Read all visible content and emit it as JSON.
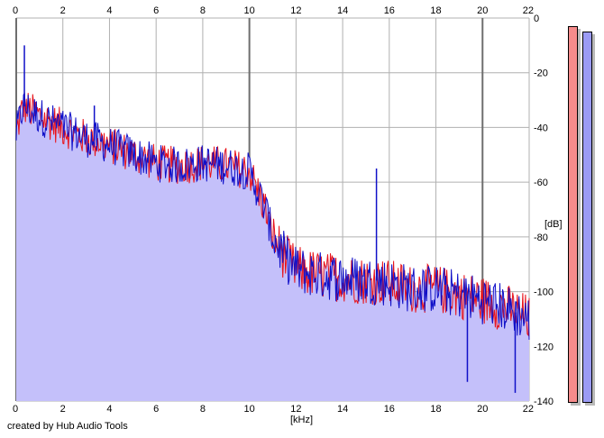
{
  "chart_data": {
    "type": "area",
    "title": "",
    "xlabel": "[kHz]",
    "ylabel": "[dB]",
    "xlim": [
      0,
      22
    ],
    "ylim": [
      -140,
      0
    ],
    "x_ticks": [
      0,
      2,
      4,
      6,
      8,
      10,
      12,
      14,
      16,
      18,
      20,
      22
    ],
    "y_ticks": [
      0,
      -20,
      -40,
      -60,
      -80,
      -100,
      -120,
      -140
    ],
    "grid": true,
    "colors": {
      "fill": "#c4c0fa",
      "left_channel": "#e8131b",
      "right_channel": "#1010c8",
      "grid": "#b0b0b0",
      "meter_left": "#f58b8b",
      "meter_right": "#9b9bf5"
    },
    "envelope": {
      "x": [
        0,
        0.3,
        0.8,
        1.5,
        2.0,
        3.0,
        3.5,
        4.5,
        6.0,
        7.0,
        8.0,
        9.0,
        10.0,
        10.3,
        10.7,
        11.0,
        11.5,
        12.0,
        13.0,
        14.0,
        15.0,
        15.5,
        16.0,
        17.0,
        18.0,
        19.0,
        20.0,
        21.0,
        22.0
      ],
      "y": [
        -42,
        -32,
        -35,
        -38,
        -40,
        -44,
        -45,
        -48,
        -53,
        -54,
        -53,
        -54,
        -56,
        -62,
        -70,
        -80,
        -87,
        -92,
        -94,
        -95,
        -96,
        -96,
        -97,
        -99,
        -99,
        -101,
        -103,
        -106,
        -110
      ]
    },
    "spikes": [
      {
        "x": 0.35,
        "y": -10
      },
      {
        "x": 3.35,
        "y": -32
      },
      {
        "x": 15.45,
        "y": -55
      },
      {
        "x": 19.35,
        "y": -133
      },
      {
        "x": 21.4,
        "y": -137
      }
    ],
    "meters": [
      {
        "channel": "L",
        "level_db": -3
      },
      {
        "channel": "R",
        "level_db": -5
      }
    ]
  },
  "footer_text": "created by Hub Audio Tools"
}
